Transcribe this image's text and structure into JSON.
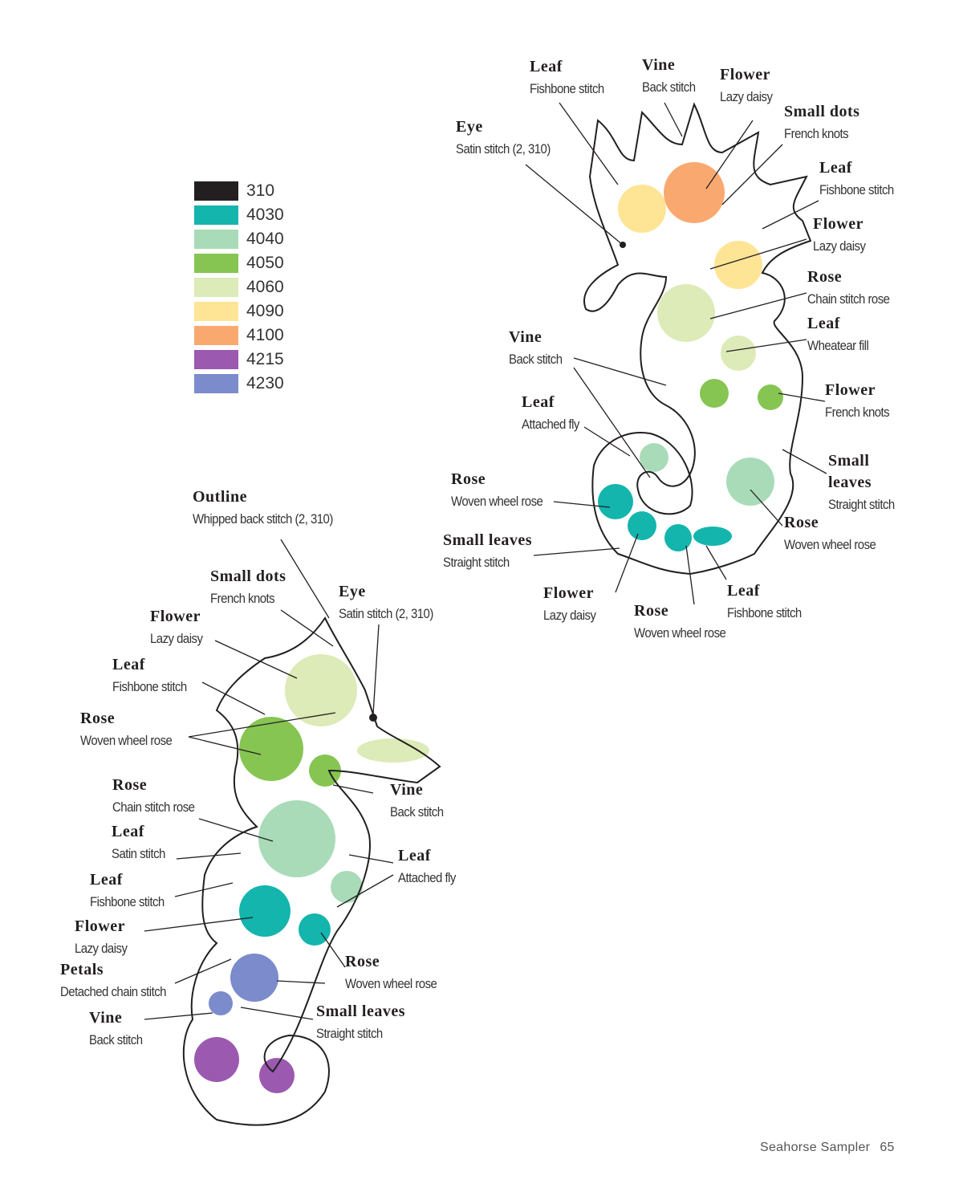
{
  "legend": [
    {
      "code": "310",
      "color": "#231f20"
    },
    {
      "code": "4030",
      "color": "#13b5ad"
    },
    {
      "code": "4040",
      "color": "#a9dbb8"
    },
    {
      "code": "4050",
      "color": "#86c552"
    },
    {
      "code": "4060",
      "color": "#dcebb7"
    },
    {
      "code": "4090",
      "color": "#fde595"
    },
    {
      "code": "4100",
      "color": "#f9a970"
    },
    {
      "code": "4215",
      "color": "#9b59b0"
    },
    {
      "code": "4230",
      "color": "#7b8bcb"
    }
  ],
  "seahorse_right": {
    "labels": [
      {
        "name": "Leaf",
        "stitch": "Fishbone stitch"
      },
      {
        "name": "Vine",
        "stitch": "Back stitch"
      },
      {
        "name": "Flower",
        "stitch": "Lazy daisy"
      },
      {
        "name": "Small dots",
        "stitch": "French knots"
      },
      {
        "name": "Eye",
        "stitch": "Satin stitch (2, 310)"
      },
      {
        "name": "Leaf",
        "stitch": "Fishbone stitch"
      },
      {
        "name": "Flower",
        "stitch": "Lazy daisy"
      },
      {
        "name": "Rose",
        "stitch": "Chain stitch rose"
      },
      {
        "name": "Leaf",
        "stitch": "Wheatear fill"
      },
      {
        "name": "Vine",
        "stitch": "Back stitch"
      },
      {
        "name": "Flower",
        "stitch": "French knots"
      },
      {
        "name": "Leaf",
        "stitch": "Attached fly"
      },
      {
        "name": "Small leaves",
        "stitch": "Straight stitch"
      },
      {
        "name": "Rose",
        "stitch": "Woven wheel rose"
      },
      {
        "name": "Rose",
        "stitch": "Woven wheel rose"
      },
      {
        "name": "Small leaves",
        "stitch": "Straight stitch"
      },
      {
        "name": "Flower",
        "stitch": "Lazy daisy"
      },
      {
        "name": "Rose",
        "stitch": "Woven wheel rose"
      },
      {
        "name": "Leaf",
        "stitch": "Fishbone stitch"
      }
    ]
  },
  "seahorse_left": {
    "labels": [
      {
        "name": "Outline",
        "stitch": "Whipped back stitch (2, 310)"
      },
      {
        "name": "Small dots",
        "stitch": "French knots"
      },
      {
        "name": "Eye",
        "stitch": "Satin stitch (2, 310)"
      },
      {
        "name": "Flower",
        "stitch": "Lazy daisy"
      },
      {
        "name": "Leaf",
        "stitch": "Fishbone stitch"
      },
      {
        "name": "Rose",
        "stitch": "Woven wheel rose"
      },
      {
        "name": "Vine",
        "stitch": "Back stitch"
      },
      {
        "name": "Rose",
        "stitch": "Chain stitch rose"
      },
      {
        "name": "Leaf",
        "stitch": "Satin stitch"
      },
      {
        "name": "Leaf",
        "stitch": "Attached fly"
      },
      {
        "name": "Leaf",
        "stitch": "Fishbone stitch"
      },
      {
        "name": "Flower",
        "stitch": "Lazy daisy"
      },
      {
        "name": "Rose",
        "stitch": "Woven wheel rose"
      },
      {
        "name": "Petals",
        "stitch": "Detached chain stitch"
      },
      {
        "name": "Small leaves",
        "stitch": "Straight stitch"
      },
      {
        "name": "Vine",
        "stitch": "Back stitch"
      }
    ]
  },
  "footer": {
    "title": "Seahorse Sampler",
    "page": "65"
  }
}
